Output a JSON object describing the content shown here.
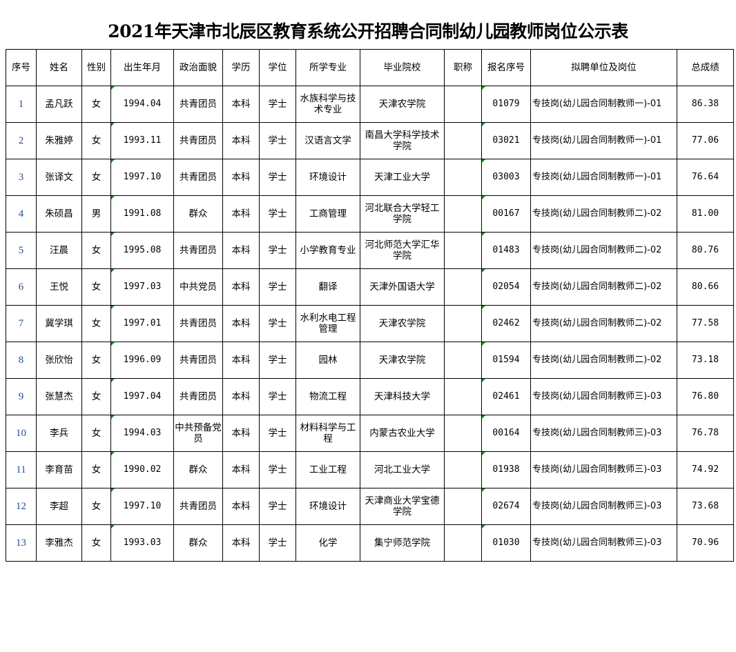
{
  "title": "2021年天津市北辰区教育系统公开招聘合同制幼儿园教师岗位公示表",
  "colors": {
    "serial_number": "#1f4e9a",
    "cell_marker": "#1a8a1a"
  },
  "headers": [
    "序号",
    "姓名",
    "性别",
    "出生年月",
    "政治面貌",
    "学历",
    "学位",
    "所学专业",
    "毕业院校",
    "职称",
    "报名序号",
    "拟聘单位及岗位",
    "总成绩"
  ],
  "rows": [
    [
      "1",
      "孟凡跃",
      "女",
      "1994.04",
      "共青团员",
      "本科",
      "学士",
      "水族科学与技术专业",
      "天津农学院",
      "",
      "01079",
      "专技岗(幼儿园合同制教师一)-01",
      "86.38"
    ],
    [
      "2",
      "朱雅婷",
      "女",
      "1993.11",
      "共青团员",
      "本科",
      "学士",
      "汉语言文学",
      "南昌大学科学技术学院",
      "",
      "03021",
      "专技岗(幼儿园合同制教师一)-01",
      "77.06"
    ],
    [
      "3",
      "张译文",
      "女",
      "1997.10",
      "共青团员",
      "本科",
      "学士",
      "环境设计",
      "天津工业大学",
      "",
      "03003",
      "专技岗(幼儿园合同制教师一)-01",
      "76.64"
    ],
    [
      "4",
      "朱硕昌",
      "男",
      "1991.08",
      "群众",
      "本科",
      "学士",
      "工商管理",
      "河北联合大学轻工学院",
      "",
      "00167",
      "专技岗(幼儿园合同制教师二)-02",
      "81.00"
    ],
    [
      "5",
      "汪晨",
      "女",
      "1995.08",
      "共青团员",
      "本科",
      "学士",
      "小学教育专业",
      "河北师范大学汇华学院",
      "",
      "01483",
      "专技岗(幼儿园合同制教师二)-02",
      "80.76"
    ],
    [
      "6",
      "王悦",
      "女",
      "1997.03",
      "中共党员",
      "本科",
      "学士",
      "翻译",
      "天津外国语大学",
      "",
      "02054",
      "专技岗(幼儿园合同制教师二)-02",
      "80.66"
    ],
    [
      "7",
      "冀学琪",
      "女",
      "1997.01",
      "共青团员",
      "本科",
      "学士",
      "水利水电工程管理",
      "天津农学院",
      "",
      "02462",
      "专技岗(幼儿园合同制教师二)-02",
      "77.58"
    ],
    [
      "8",
      "张欣怡",
      "女",
      "1996.09",
      "共青团员",
      "本科",
      "学士",
      "园林",
      "天津农学院",
      "",
      "01594",
      "专技岗(幼儿园合同制教师二)-02",
      "73.18"
    ],
    [
      "9",
      "张慧杰",
      "女",
      "1997.04",
      "共青团员",
      "本科",
      "学士",
      "物流工程",
      "天津科技大学",
      "",
      "02461",
      "专技岗(幼儿园合同制教师三)-03",
      "76.80"
    ],
    [
      "10",
      "李兵",
      "女",
      "1994.03",
      "中共预备党员",
      "本科",
      "学士",
      "材料科学与工程",
      "内蒙古农业大学",
      "",
      "00164",
      "专技岗(幼儿园合同制教师三)-03",
      "76.78"
    ],
    [
      "11",
      "李育苗",
      "女",
      "1990.02",
      "群众",
      "本科",
      "学士",
      "工业工程",
      "河北工业大学",
      "",
      "01938",
      "专技岗(幼儿园合同制教师三)-03",
      "74.92"
    ],
    [
      "12",
      "李超",
      "女",
      "1997.10",
      "共青团员",
      "本科",
      "学士",
      "环境设计",
      "天津商业大学宝德学院",
      "",
      "02674",
      "专技岗(幼儿园合同制教师三)-03",
      "73.68"
    ],
    [
      "13",
      "李雅杰",
      "女",
      "1993.03",
      "群众",
      "本科",
      "学士",
      "化学",
      "集宁师范学院",
      "",
      "01030",
      "专技岗(幼儿园合同制教师三)-03",
      "70.96"
    ]
  ]
}
